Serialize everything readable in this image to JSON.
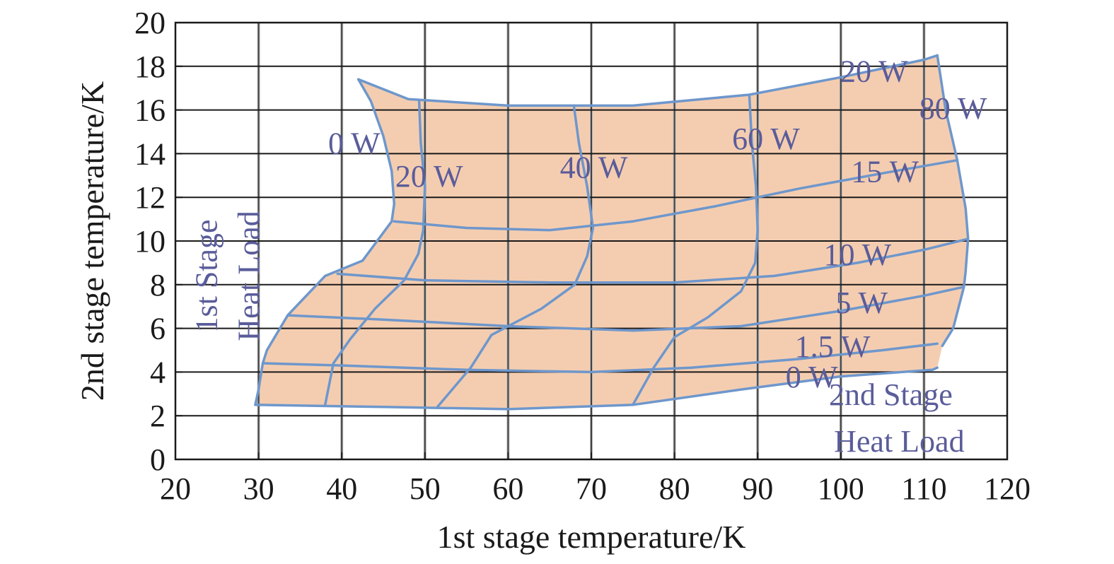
{
  "chart_data": {
    "type": "line",
    "title": "",
    "xlabel": "1st stage temperature/K",
    "ylabel": "2nd stage temperature/K",
    "xlim": [
      20,
      120
    ],
    "ylim": [
      0,
      20
    ],
    "x_ticks": [
      20,
      30,
      40,
      50,
      60,
      70,
      80,
      90,
      100,
      110,
      120
    ],
    "y_ticks": [
      0,
      2,
      4,
      6,
      8,
      10,
      12,
      14,
      16,
      18,
      20
    ],
    "grid": true,
    "region_fill_color": "#f4cdb0",
    "curve_color": "#6e97cc",
    "label_color": "#5a5c9a",
    "group_labels": {
      "first_stage": [
        "1st Stage",
        "Heat Load"
      ],
      "second_stage": [
        "2nd Stage",
        "Heat Load"
      ]
    },
    "series_first_stage_load": [
      {
        "name": "0 W",
        "points": [
          [
            42,
            17.4
          ],
          [
            43.5,
            16.4
          ],
          [
            45,
            14.8
          ],
          [
            46,
            13.2
          ],
          [
            46.3,
            11.7
          ],
          [
            46,
            10.9
          ],
          [
            42.5,
            9.1
          ],
          [
            38,
            8.4
          ],
          [
            35,
            7.2
          ],
          [
            33.5,
            6.6
          ],
          [
            31,
            5
          ],
          [
            30.5,
            4.4
          ],
          [
            30,
            3.2
          ],
          [
            29.6,
            2.5
          ]
        ]
      },
      {
        "name": "20 W",
        "points": [
          [
            49.3,
            16.4
          ],
          [
            49.5,
            14.5
          ],
          [
            50,
            12.5
          ],
          [
            49.8,
            10.5
          ],
          [
            49.2,
            9.4
          ],
          [
            47.5,
            8.2
          ],
          [
            44,
            6.9
          ],
          [
            41,
            5.5
          ],
          [
            39,
            4.4
          ],
          [
            38,
            2.5
          ]
        ]
      },
      {
        "name": "40 W",
        "points": [
          [
            67.9,
            16.2
          ],
          [
            68.5,
            14.5
          ],
          [
            69.5,
            12.5
          ],
          [
            70.2,
            10.6
          ],
          [
            69.5,
            9.3
          ],
          [
            68,
            8
          ],
          [
            64,
            6.9
          ],
          [
            58,
            5.7
          ],
          [
            55.5,
            4.2
          ],
          [
            51.5,
            2.4
          ]
        ]
      },
      {
        "name": "60 W",
        "points": [
          [
            89,
            16.7
          ],
          [
            89.3,
            14.5
          ],
          [
            89.8,
            12.5
          ],
          [
            90,
            10.5
          ],
          [
            89.7,
            9
          ],
          [
            88,
            7.7
          ],
          [
            84,
            6.5
          ],
          [
            80,
            5.6
          ],
          [
            77.5,
            4.2
          ],
          [
            75,
            2.5
          ]
        ]
      },
      {
        "name": "80 W",
        "points": [
          [
            111.6,
            18.5
          ],
          [
            112.6,
            16
          ],
          [
            114,
            13.7
          ],
          [
            115,
            11.5
          ],
          [
            115.3,
            10.1
          ],
          [
            115,
            8.6
          ],
          [
            114.8,
            7.9
          ],
          [
            113.5,
            6
          ],
          [
            112.2,
            5.2
          ]
        ]
      }
    ],
    "series_second_stage_load": [
      {
        "name": "0 W",
        "points": [
          [
            29.6,
            2.5
          ],
          [
            45,
            2.4
          ],
          [
            60,
            2.3
          ],
          [
            75,
            2.5
          ],
          [
            88,
            3.2
          ],
          [
            100,
            3.8
          ],
          [
            111,
            4.1
          ],
          [
            111.6,
            4.2
          ]
        ]
      },
      {
        "name": "1.5 W",
        "points": [
          [
            30.5,
            4.4
          ],
          [
            40,
            4.3
          ],
          [
            55,
            4.1
          ],
          [
            70,
            4
          ],
          [
            82,
            4.2
          ],
          [
            95,
            4.6
          ],
          [
            105,
            5
          ],
          [
            111.6,
            5.3
          ]
        ]
      },
      {
        "name": "5 W",
        "points": [
          [
            33.5,
            6.6
          ],
          [
            45,
            6.4
          ],
          [
            60,
            6.1
          ],
          [
            75,
            5.9
          ],
          [
            88,
            6.1
          ],
          [
            100,
            6.8
          ],
          [
            110,
            7.5
          ],
          [
            114.8,
            7.9
          ]
        ]
      },
      {
        "name": "10 W",
        "points": [
          [
            39.5,
            8.5
          ],
          [
            50,
            8.2
          ],
          [
            65,
            8.1
          ],
          [
            80,
            8.1
          ],
          [
            92,
            8.4
          ],
          [
            102,
            9
          ],
          [
            110,
            9.6
          ],
          [
            115.3,
            10.1
          ]
        ]
      },
      {
        "name": "15 W",
        "points": [
          [
            46.3,
            10.9
          ],
          [
            55,
            10.6
          ],
          [
            65,
            10.5
          ],
          [
            75,
            10.9
          ],
          [
            85,
            11.6
          ],
          [
            95,
            12.4
          ],
          [
            105,
            13.1
          ],
          [
            114,
            13.7
          ]
        ]
      },
      {
        "name": "20 W",
        "points": [
          [
            42,
            17.4
          ],
          [
            48,
            16.5
          ],
          [
            60,
            16.2
          ],
          [
            75,
            16.2
          ],
          [
            89,
            16.7
          ],
          [
            100,
            17.5
          ],
          [
            110,
            18.3
          ],
          [
            111.6,
            18.5
          ]
        ]
      }
    ],
    "first_stage_label_positions": [
      [
        41.5,
        14
      ],
      [
        50.5,
        12.5
      ],
      [
        70.3,
        12.9
      ],
      [
        91,
        14.2
      ],
      [
        113.5,
        15.6
      ]
    ],
    "second_stage_label_positions": [
      [
        96.5,
        3.3
      ],
      [
        99,
        4.7
      ],
      [
        102.5,
        6.7
      ],
      [
        102,
        8.9
      ],
      [
        105.3,
        12.7
      ],
      [
        104,
        17.3
      ]
    ],
    "group_label_positions": {
      "first_stage": [
        27,
        8.4
      ],
      "second_stage": [
        106,
        2.5
      ]
    }
  }
}
